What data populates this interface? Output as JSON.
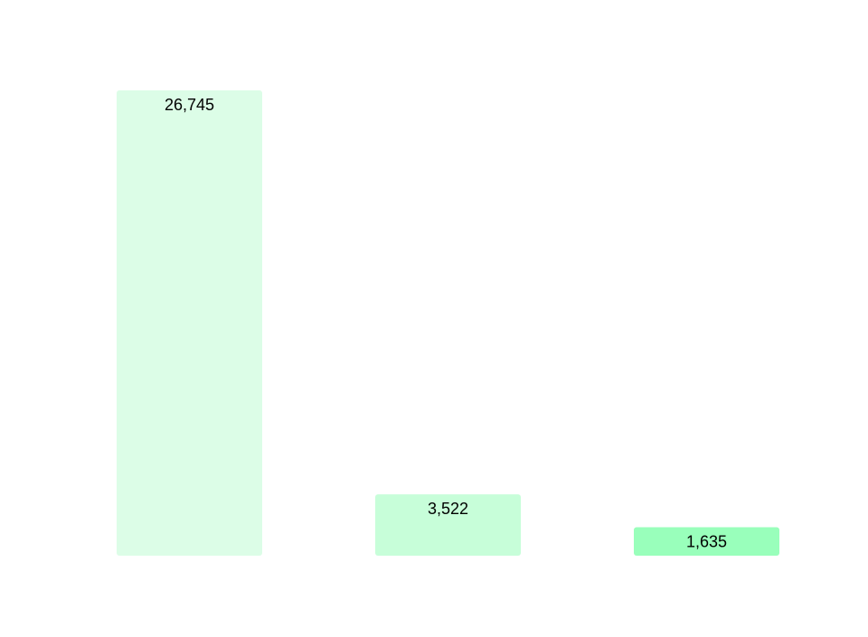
{
  "chart_data": {
    "type": "bar",
    "categories": [
      null,
      null,
      null
    ],
    "values": [
      26745,
      3522,
      1635
    ],
    "value_labels": [
      "26,745",
      "3,522",
      "1,635"
    ],
    "colors": [
      "#dcfde7",
      "#c7fed9",
      "#99ffbb"
    ]
  }
}
